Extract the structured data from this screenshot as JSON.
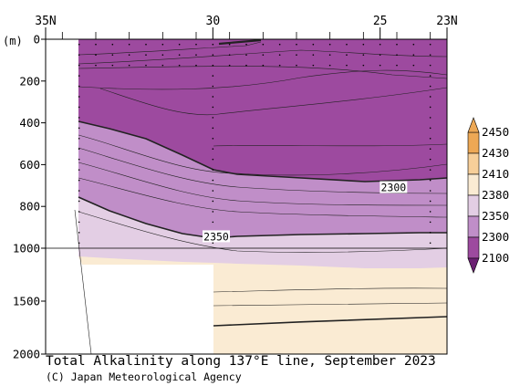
{
  "chart_data": {
    "type": "contour",
    "title": "Total Alkalinity along 137°E line, September 2023",
    "credit": "(C) Japan Meteorological Agency",
    "y_unit": "(m)",
    "x_ticks": [
      {
        "value": 35,
        "label": "35N"
      },
      {
        "value": 30,
        "label": "30"
      },
      {
        "value": 25,
        "label": "25"
      },
      {
        "value": 23,
        "label": "23N"
      }
    ],
    "x_range": [
      35,
      23
    ],
    "x_axis_reversed": true,
    "y_ticks": [
      0,
      200,
      400,
      600,
      800,
      1000,
      1500,
      2000
    ],
    "y_range": [
      2000,
      0
    ],
    "y_axis_note": "scale changes at 1000 m",
    "station_latitudes": [
      34,
      33.5,
      33,
      32.5,
      32,
      31.5,
      31,
      30.5,
      30,
      29.5,
      29,
      28.5,
      28,
      27.5,
      27,
      26.5,
      26,
      25.5,
      25,
      24.5,
      24,
      23.5
    ],
    "colorbar": {
      "levels": [
        2100,
        2300,
        2350,
        2380,
        2410,
        2430,
        2450
      ],
      "labels": [
        "2100",
        "2300",
        "2350",
        "2380",
        "2410",
        "2430",
        "2450"
      ],
      "colors": [
        "#9d4a9f",
        "#c08ec8",
        "#e3cee4",
        "#faebd3",
        "#f7cf99",
        "#eda855"
      ],
      "extend": "both"
    },
    "contour_labels": [
      {
        "value": "2300",
        "lat": 24.6,
        "depth": 710
      },
      {
        "value": "2350",
        "lat": 29.9,
        "depth": 945
      }
    ],
    "zones": [
      {
        "name": "below 2300",
        "color": "#9d4a9f"
      },
      {
        "name": "2300-2350",
        "color": "#c08ec8"
      },
      {
        "name": "2350-2380",
        "color": "#e3cee4"
      },
      {
        "name": "2380-2410",
        "color": "#faebd3"
      }
    ]
  }
}
